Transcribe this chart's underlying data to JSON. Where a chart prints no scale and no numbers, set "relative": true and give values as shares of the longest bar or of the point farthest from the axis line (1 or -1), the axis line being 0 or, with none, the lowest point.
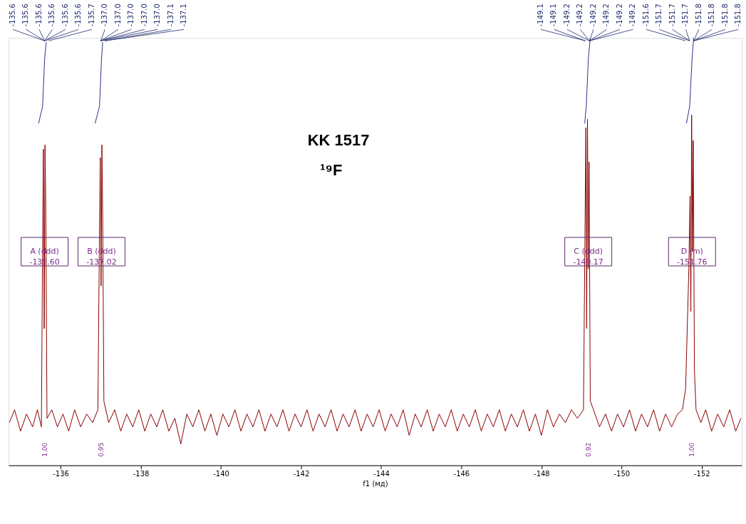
{
  "chart_data": {
    "type": "line",
    "title": "KK 1517",
    "subtitle": "¹⁹F",
    "xlabel": "f1 (мд)",
    "relative": true,
    "xlim": [
      -134.7,
      -153.0
    ],
    "xticks": [
      -136,
      -138,
      -140,
      -142,
      -144,
      -146,
      -148,
      -150,
      -152
    ],
    "grid": false,
    "legend": false,
    "marker": "none",
    "series": [
      {
        "color": "#8b0000",
        "x": [
          -134.72,
          -134.85,
          -135.0,
          -135.15,
          -135.3,
          -135.42,
          -135.52,
          -135.55,
          -135.57,
          -135.59,
          -135.61,
          -135.63,
          -135.66,
          -135.78,
          -135.92,
          -136.06,
          -136.2,
          -136.35,
          -136.5,
          -136.65,
          -136.8,
          -136.93,
          -136.97,
          -136.99,
          -137.01,
          -137.03,
          -137.05,
          -137.08,
          -137.2,
          -137.35,
          -137.5,
          -137.65,
          -137.8,
          -137.95,
          -138.1,
          -138.25,
          -138.4,
          -138.55,
          -138.7,
          -138.85,
          -139.0,
          -139.15,
          -139.3,
          -139.45,
          -139.6,
          -139.75,
          -139.9,
          -140.05,
          -140.2,
          -140.35,
          -140.5,
          -140.65,
          -140.8,
          -140.95,
          -141.1,
          -141.25,
          -141.4,
          -141.55,
          -141.7,
          -141.85,
          -142.0,
          -142.15,
          -142.3,
          -142.45,
          -142.6,
          -142.75,
          -142.9,
          -143.05,
          -143.2,
          -143.35,
          -143.5,
          -143.65,
          -143.8,
          -143.95,
          -144.1,
          -144.25,
          -144.4,
          -144.55,
          -144.7,
          -144.85,
          -145.0,
          -145.15,
          -145.3,
          -145.45,
          -145.6,
          -145.75,
          -145.9,
          -146.05,
          -146.2,
          -146.35,
          -146.5,
          -146.65,
          -146.8,
          -146.95,
          -147.1,
          -147.25,
          -147.4,
          -147.55,
          -147.7,
          -147.85,
          -148.0,
          -148.15,
          -148.3,
          -148.45,
          -148.6,
          -148.75,
          -148.9,
          -149.05,
          -149.09,
          -149.11,
          -149.13,
          -149.15,
          -149.17,
          -149.19,
          -149.22,
          -149.3,
          -149.45,
          -149.6,
          -149.75,
          -149.9,
          -150.05,
          -150.2,
          -150.35,
          -150.5,
          -150.65,
          -150.8,
          -150.95,
          -151.1,
          -151.25,
          -151.4,
          -151.52,
          -151.6,
          -151.64,
          -151.68,
          -151.71,
          -151.73,
          -151.75,
          -151.77,
          -151.79,
          -151.82,
          -151.86,
          -151.98,
          -152.1,
          -152.25,
          -152.4,
          -152.55,
          -152.7,
          -152.85,
          -152.98
        ],
        "values": [
          0.1,
          0.13,
          0.08,
          0.12,
          0.09,
          0.13,
          0.09,
          0.52,
          0.74,
          0.32,
          0.75,
          0.6,
          0.11,
          0.13,
          0.09,
          0.12,
          0.08,
          0.13,
          0.09,
          0.12,
          0.1,
          0.13,
          0.55,
          0.72,
          0.42,
          0.75,
          0.58,
          0.15,
          0.1,
          0.13,
          0.08,
          0.12,
          0.09,
          0.13,
          0.08,
          0.12,
          0.09,
          0.13,
          0.08,
          0.11,
          0.05,
          0.12,
          0.09,
          0.13,
          0.08,
          0.12,
          0.07,
          0.12,
          0.09,
          0.13,
          0.08,
          0.12,
          0.09,
          0.13,
          0.08,
          0.12,
          0.09,
          0.13,
          0.08,
          0.12,
          0.09,
          0.13,
          0.08,
          0.12,
          0.09,
          0.13,
          0.08,
          0.12,
          0.09,
          0.13,
          0.08,
          0.12,
          0.09,
          0.13,
          0.08,
          0.12,
          0.09,
          0.13,
          0.07,
          0.12,
          0.09,
          0.13,
          0.08,
          0.12,
          0.09,
          0.13,
          0.08,
          0.12,
          0.09,
          0.13,
          0.08,
          0.12,
          0.09,
          0.13,
          0.08,
          0.12,
          0.09,
          0.13,
          0.08,
          0.12,
          0.07,
          0.13,
          0.09,
          0.12,
          0.1,
          0.13,
          0.11,
          0.13,
          0.57,
          0.79,
          0.32,
          0.81,
          0.46,
          0.71,
          0.15,
          0.13,
          0.09,
          0.12,
          0.08,
          0.12,
          0.09,
          0.13,
          0.08,
          0.12,
          0.09,
          0.13,
          0.08,
          0.12,
          0.09,
          0.12,
          0.13,
          0.18,
          0.32,
          0.46,
          0.63,
          0.36,
          0.82,
          0.5,
          0.76,
          0.22,
          0.13,
          0.1,
          0.13,
          0.08,
          0.12,
          0.09,
          0.13,
          0.08,
          0.11
        ]
      },
      {
        "color": "#2e2e8f",
        "x": [
          -135.45,
          -135.55,
          -135.6,
          -135.64
        ],
        "values": [
          0.8,
          0.84,
          0.95,
          0.99
        ]
      },
      {
        "color": "#2e2e8f",
        "x": [
          -136.86,
          -136.97,
          -137.02,
          -137.05
        ],
        "values": [
          0.8,
          0.84,
          0.95,
          0.99
        ]
      },
      {
        "color": "#2e2e8f",
        "x": [
          -149.08,
          -149.12,
          -149.17,
          -149.22
        ],
        "values": [
          0.8,
          0.84,
          0.95,
          1.0
        ]
      },
      {
        "color": "#2e2e8f",
        "x": [
          -151.62,
          -151.7,
          -151.76,
          -151.8
        ],
        "values": [
          0.8,
          0.84,
          0.95,
          1.0
        ]
      }
    ],
    "annotations": [
      {
        "text": "-135.6",
        "x": -135.6
      },
      {
        "text": "-135.6",
        "x": -135.6
      },
      {
        "text": "-135.6",
        "x": -135.6
      },
      {
        "text": "-135.6",
        "x": -135.6
      },
      {
        "text": "-135.6",
        "x": -135.6
      },
      {
        "text": "-135.6",
        "x": -135.6
      },
      {
        "text": "-135.7",
        "x": -135.7
      },
      {
        "text": "-137.0",
        "x": -137.0
      },
      {
        "text": "-137.0",
        "x": -137.0
      },
      {
        "text": "-137.0",
        "x": -137.0
      },
      {
        "text": "-137.0",
        "x": -137.0
      },
      {
        "text": "-137.0",
        "x": -137.0
      },
      {
        "text": "-137.1",
        "x": -137.1
      },
      {
        "text": "-137.1",
        "x": -137.1
      },
      {
        "text": "-149.1",
        "x": -149.1
      },
      {
        "text": "-149.1",
        "x": -149.1
      },
      {
        "text": "-149.2",
        "x": -149.2
      },
      {
        "text": "-149.2",
        "x": -149.2
      },
      {
        "text": "-149.2",
        "x": -149.2
      },
      {
        "text": "-149.2",
        "x": -149.2
      },
      {
        "text": "-149.2",
        "x": -149.2
      },
      {
        "text": "-149.2",
        "x": -149.2
      },
      {
        "text": "-151.6",
        "x": -151.6
      },
      {
        "text": "-151.7",
        "x": -151.7
      },
      {
        "text": "-151.7",
        "x": -151.7
      },
      {
        "text": "-151.7",
        "x": -151.7
      },
      {
        "text": "-151.8",
        "x": -151.8
      },
      {
        "text": "-151.8",
        "x": -151.8
      },
      {
        "text": "-151.8",
        "x": -151.8
      },
      {
        "text": "-151.8",
        "x": -151.8
      },
      {
        "text": "A (ddd)\n-135.60",
        "x": -135.6,
        "y": 0.5
      },
      {
        "text": "B (ddd)\n-137.02",
        "x": -137.02,
        "y": 0.5
      },
      {
        "text": "C (ddd)\n-149.17",
        "x": -149.17,
        "y": 0.5
      },
      {
        "text": "D (m)\n-151.76",
        "x": -151.76,
        "y": 0.5
      },
      "1.00",
      "0.95",
      "0.92",
      "1.00"
    ]
  }
}
